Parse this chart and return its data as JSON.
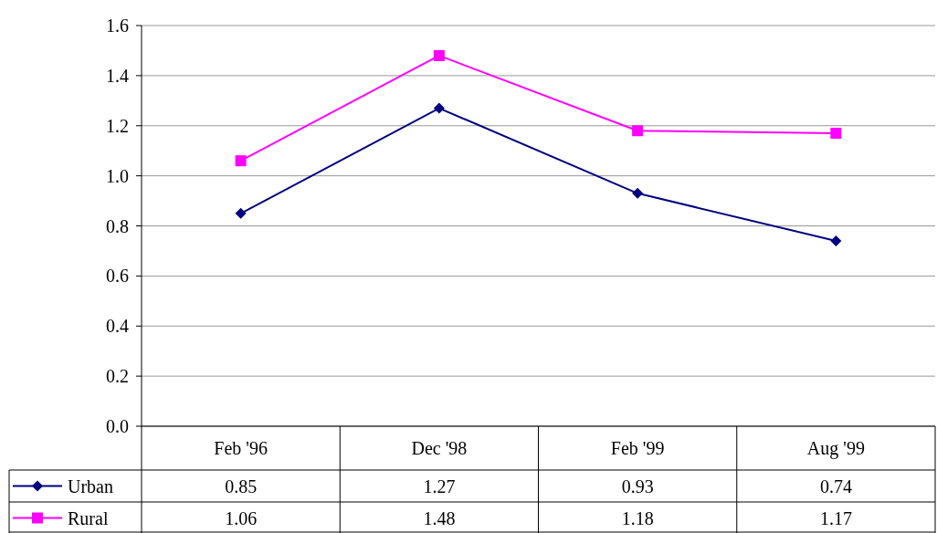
{
  "chart_data": {
    "type": "line",
    "categories": [
      "Feb '96",
      "Dec '98",
      "Feb '99",
      "Aug '99"
    ],
    "series": [
      {
        "name": "Urban",
        "color": "#000080",
        "marker": "diamond",
        "values": [
          0.85,
          1.27,
          0.93,
          0.74
        ]
      },
      {
        "name": "Rural",
        "color": "#ff00ff",
        "marker": "square",
        "values": [
          1.06,
          1.48,
          1.18,
          1.17
        ]
      }
    ],
    "ylim": [
      0,
      1.6
    ],
    "yticks": [
      {
        "value": 0,
        "label": "0.0"
      },
      {
        "value": 0.2,
        "label": "0.2"
      },
      {
        "value": 0.4,
        "label": "0.4"
      },
      {
        "value": 0.6,
        "label": "0.6"
      },
      {
        "value": 0.8,
        "label": "0.8"
      },
      {
        "value": 1,
        "label": "1.0"
      },
      {
        "value": 1.2,
        "label": "1.2"
      },
      {
        "value": 1.4,
        "label": "1.4"
      },
      {
        "value": 1.6,
        "label": "1.6"
      }
    ],
    "grid": "y",
    "legend": "bottom",
    "data_labels": true
  }
}
